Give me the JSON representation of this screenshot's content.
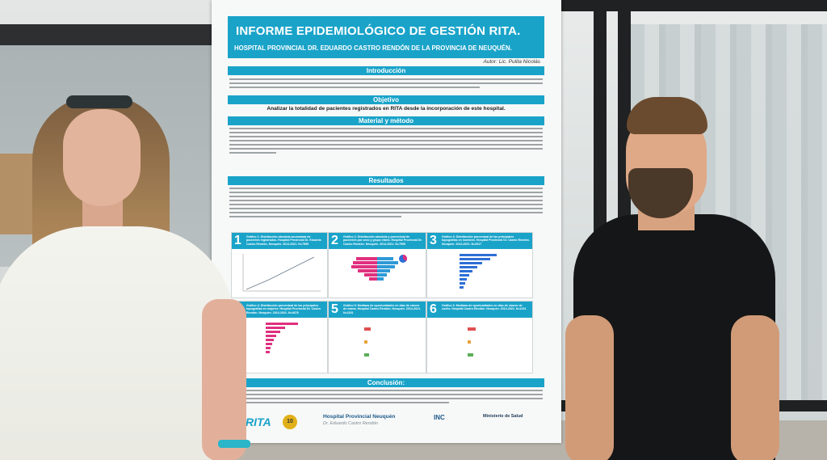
{
  "poster": {
    "title": "INFORME EPIDEMIOLÓGICO DE GESTIÓN RITA.",
    "subtitle": "HOSPITAL PROVINCIAL DR. EDUARDO CASTRO RENDÓN DE LA PROVINCIA DE NEUQUÉN.",
    "author": "Autor: Lic. Pulita Nicolás",
    "sections": {
      "intro": "Introducción",
      "objective": "Objetivo",
      "methods": "Material y método",
      "results": "Resultados",
      "conclusion": "Conclusión:"
    },
    "objective_text": "Analizar la totalidad de pacientes registrados en RITA desde la incorporación de este hospital.",
    "charts": [
      {
        "num": "1",
        "caption": "Gráfico 1: Distribución absoluta acumulada de pacientes registrados. Hospital Provincial Dr. Eduardo Castro Rendón, Neuquén. 2014-2021. N=7595"
      },
      {
        "num": "2",
        "caption": "Gráfico 2: Distribución absoluta y porcentual de pacientes por sexo y grupo etario. Hospital Provincial Dr. Castro Rendón. Neuquén. 2014-2021. N=7595"
      },
      {
        "num": "3",
        "caption": "Gráfico 3: Distribución porcentual de las principales topografías en hombres. Hospital Provincial Dr. Castro Rendón. Neuquén. 2014-2021. N=2917"
      },
      {
        "num": "4",
        "caption": "Gráfico 4: Distribución porcentual de las principales topografías en mujeres. Hospital Provincial Dr. Castro Rendón. Neuquén. 2014-2021. N=4678"
      },
      {
        "num": "5",
        "caption": "Gráfico 5: Mediana de oportunidades en días de cáncer de mama. Hospital Castro Rendón. Neuquén. 2014-2021. N=1151"
      },
      {
        "num": "6",
        "caption": "Gráfico 6: Mediana de oportunidades en días de cáncer de cuello. Hospital Castro Rendón. Neuquén. 2014-2021. N=1231"
      }
    ],
    "logos": {
      "rita": "RITA",
      "badge": "10",
      "hospital": "Hospital Provincial Neuquén",
      "hospital_sub": "Dr. Eduardo Castro Rendón",
      "inc": "INC",
      "ministry": "Ministerio de Salud"
    }
  },
  "colors": {
    "accent": "#1aa3c9",
    "male_bar": "#2e6fd6",
    "female_bar": "#e0307f"
  }
}
